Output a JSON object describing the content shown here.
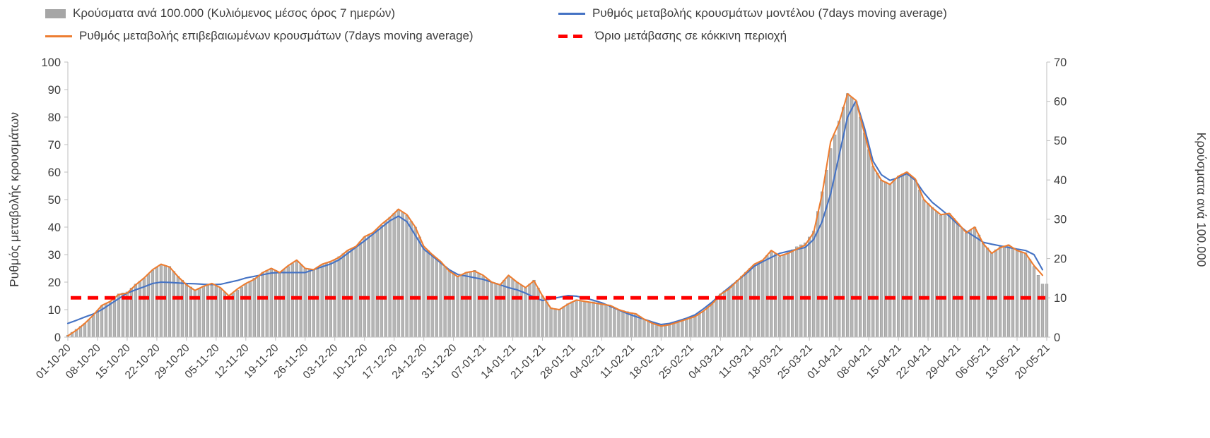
{
  "legend": {
    "items": [
      {
        "label": "Κρούσματα ανά 100.000 (Κυλιόμενος μέσος όρος 7 ημερών)",
        "type": "bar",
        "color": "#a6a6a6"
      },
      {
        "label": "Ρυθμός μεταβολής κρουσμάτων μοντέλου (7days moving average)",
        "type": "line",
        "color": "#4472c4"
      },
      {
        "label": "Ρυθμός μεταβολής επιβεβαιωμένων κρουσμάτων (7days moving average)",
        "type": "line",
        "color": "#ed7d31"
      },
      {
        "label": "Όριο μετάβασης σε κόκκινη περιοχή",
        "type": "dashed",
        "color": "#ff0000"
      }
    ]
  },
  "chart_data": {
    "type": "bar+line",
    "title": "",
    "total_days": 232,
    "days_per_x_tick": 7,
    "left_axis": {
      "title": "Ρυθμός μεταβολής κρουσμάτων",
      "min": 0,
      "max": 100,
      "step": 10,
      "ticks": [
        0,
        10,
        20,
        30,
        40,
        50,
        60,
        70,
        80,
        90,
        100
      ]
    },
    "right_axis": {
      "title": "Κρούσματα ανά 100.000",
      "min": 0,
      "max": 70,
      "step": 10,
      "ticks": [
        0,
        10,
        20,
        30,
        40,
        50,
        60,
        70
      ]
    },
    "x_tick_labels": [
      "01-10-20",
      "08-10-20",
      "15-10-20",
      "22-10-20",
      "29-10-20",
      "05-11-20",
      "12-11-20",
      "19-11-20",
      "26-11-20",
      "03-12-20",
      "10-12-20",
      "17-12-20",
      "24-12-20",
      "31-12-20",
      "07-01-21",
      "14-01-21",
      "21-01-21",
      "28-01-21",
      "04-02-21",
      "11-02-21",
      "18-02-21",
      "25-02-21",
      "04-03-21",
      "11-03-21",
      "18-03-21",
      "25-03-21",
      "01-04-21",
      "08-04-21",
      "15-04-21",
      "22-04-21",
      "29-04-21",
      "06-05-21",
      "13-05-21",
      "20-05-21"
    ],
    "threshold": {
      "label": "Όριο μετάβασης σε κόκκινη περιοχή",
      "value": 10,
      "axis": "right",
      "color": "#ff0000"
    },
    "series": [
      {
        "name": "cases_per_100k",
        "kind": "bar",
        "axis": "right",
        "color": "#b5b5b5",
        "edge_color": "#8f8f8f",
        "day_start": 0,
        "day_step": 2,
        "values": [
          0.5,
          2.0,
          3.5,
          5.5,
          8.0,
          9.0,
          11.0,
          11.5,
          13.5,
          15.0,
          17.0,
          18.5,
          18.0,
          15.5,
          13.5,
          12.0,
          13.0,
          13.5,
          12.5,
          10.5,
          12.0,
          13.5,
          15.0,
          16.5,
          17.5,
          16.5,
          18.0,
          19.5,
          17.5,
          17.0,
          18.5,
          19.0,
          20.5,
          22.0,
          23.0,
          25.5,
          26.5,
          28.5,
          30.5,
          32.5,
          31.0,
          28.0,
          23.0,
          21.0,
          19.0,
          17.0,
          15.5,
          16.5,
          17.0,
          15.5,
          14.0,
          13.5,
          15.5,
          14.0,
          12.5,
          14.5,
          10.5,
          7.5,
          7.0,
          8.5,
          9.5,
          9.0,
          9.0,
          8.5,
          8.0,
          7.0,
          6.5,
          6.0,
          4.5,
          3.5,
          3.0,
          3.2,
          4.0,
          4.5,
          5.5,
          6.5,
          8.5,
          11.0,
          12.5,
          14.5,
          16.5,
          18.5,
          19.5,
          22.0,
          20.5,
          21.5,
          23.0,
          24.0,
          27.0,
          37.0,
          48.0,
          55.0,
          62.0,
          60.0,
          52.0,
          43.5,
          40.0,
          39.0,
          41.0,
          42.0,
          40.0,
          35.0,
          33.0,
          31.0,
          31.5,
          29.0,
          26.5,
          28.0,
          24.0,
          21.5,
          23.0,
          23.5,
          22.0,
          21.5,
          18.0,
          13.5
        ]
      },
      {
        "name": "model_rate_of_change",
        "kind": "line",
        "axis": "left",
        "color": "#4472c4",
        "day_start": 0,
        "day_step": 2,
        "values": [
          5.0,
          6.1,
          7.3,
          8.4,
          10.0,
          12.0,
          14.0,
          16.0,
          17.2,
          18.3,
          19.5,
          20.0,
          19.9,
          19.7,
          19.5,
          19.4,
          19.2,
          19.1,
          19.2,
          19.9,
          20.6,
          21.5,
          22.1,
          22.7,
          23.3,
          23.5,
          23.5,
          23.5,
          23.5,
          24.5,
          25.6,
          26.6,
          28.1,
          30.4,
          32.7,
          35.0,
          37.4,
          39.9,
          42.3,
          44.0,
          42.0,
          37.0,
          32.0,
          29.5,
          27.0,
          24.5,
          22.8,
          22.2,
          21.6,
          21.0,
          20.0,
          19.0,
          18.0,
          17.2,
          16.0,
          14.5,
          13.3,
          13.9,
          14.5,
          15.1,
          14.9,
          14.2,
          13.4,
          12.5,
          11.2,
          9.9,
          8.6,
          7.5,
          6.5,
          5.5,
          4.6,
          5.0,
          5.9,
          6.9,
          8.1,
          10.3,
          12.7,
          15.5,
          18.0,
          20.5,
          23.0,
          25.8,
          27.5,
          29.0,
          30.5,
          31.2,
          31.9,
          32.6,
          35.5,
          42.0,
          52.0,
          66.0,
          80.0,
          86.0,
          76.0,
          64.0,
          59.0,
          57.0,
          58.0,
          59.5,
          57.0,
          52.5,
          49.0,
          46.5,
          44.0,
          41.0,
          38.5,
          36.5,
          34.5,
          33.8,
          33.2,
          32.6,
          32.0,
          31.5,
          30.0,
          24.5
        ]
      },
      {
        "name": "confirmed_rate_of_change",
        "kind": "line",
        "axis": "left",
        "color": "#ed7d31",
        "day_start": 0,
        "day_step": 2,
        "values": [
          0.5,
          2.5,
          5.0,
          8.0,
          11.5,
          13.0,
          15.5,
          16.0,
          19.0,
          21.5,
          24.5,
          26.5,
          25.5,
          22.0,
          19.0,
          17.0,
          18.5,
          19.5,
          18.0,
          15.0,
          17.5,
          19.5,
          21.0,
          23.5,
          25.0,
          23.5,
          26.0,
          28.0,
          25.0,
          24.5,
          26.5,
          27.5,
          29.0,
          31.5,
          33.0,
          36.5,
          38.0,
          41.0,
          43.5,
          46.5,
          44.5,
          40.0,
          33.0,
          30.0,
          27.5,
          24.0,
          22.0,
          23.5,
          24.0,
          22.5,
          20.0,
          19.0,
          22.5,
          20.0,
          18.0,
          20.5,
          15.0,
          10.5,
          10.0,
          12.0,
          13.5,
          13.0,
          12.5,
          12.0,
          11.5,
          10.0,
          9.0,
          8.5,
          6.5,
          5.0,
          4.0,
          4.5,
          5.5,
          6.5,
          7.5,
          9.5,
          12.0,
          15.5,
          17.5,
          20.5,
          23.5,
          26.5,
          28.0,
          31.5,
          29.5,
          30.5,
          32.0,
          33.5,
          38.0,
          52.0,
          71.0,
          78.0,
          88.5,
          86.0,
          74.0,
          62.0,
          57.0,
          55.5,
          58.5,
          60.0,
          57.5,
          50.0,
          47.0,
          44.5,
          45.0,
          41.5,
          38.0,
          40.0,
          34.0,
          30.5,
          32.5,
          33.5,
          31.5,
          30.5,
          26.0,
          22.5
        ]
      }
    ],
    "style": {
      "axis_line_color": "#bfbfbf",
      "tick_text_color": "#3d3d3d",
      "grid": false,
      "legend_position": "top"
    }
  }
}
